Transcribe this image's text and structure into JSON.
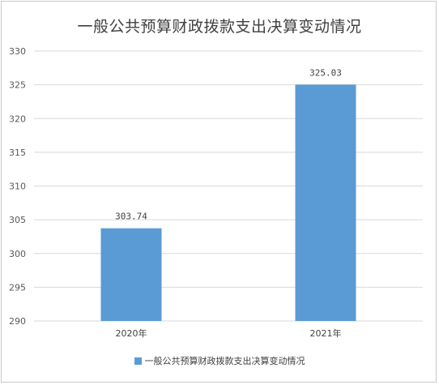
{
  "chart_data": {
    "type": "bar",
    "title": "一般公共预算财政拨款支出决算变动情况",
    "categories": [
      "2020年",
      "2021年"
    ],
    "series": [
      {
        "name": "一般公共预算财政拨款支出决算变动情况",
        "values": [
          303.74,
          325.03
        ]
      }
    ],
    "data_labels": [
      "303.74",
      "325.03"
    ],
    "ylim": [
      290,
      330
    ],
    "yticks": [
      290,
      295,
      300,
      305,
      310,
      315,
      320,
      325,
      330
    ],
    "grid": true,
    "legend": "bottom",
    "bar_color": "#5b9bd5"
  }
}
